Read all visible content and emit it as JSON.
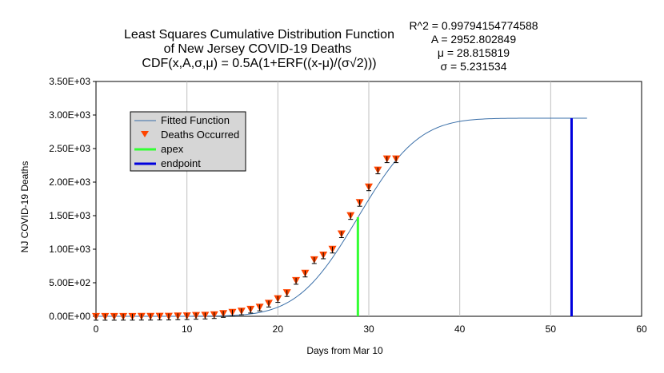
{
  "chart_data": {
    "type": "scatter",
    "title_lines": [
      "Least Squares Cumulative Distribution Function",
      "of New Jersey COVID-19 Deaths",
      "CDF(x,A,σ,μ) = 0.5A(1+ERF((x-μ)/(σ√2)))"
    ],
    "stats_lines": [
      "R^2 = 0.99794154774588",
      "A = 2952.802849",
      "μ = 28.815819",
      "σ = 5.231534"
    ],
    "params": {
      "A": 2952.802849,
      "mu": 28.815819,
      "sigma": 5.231534,
      "fit_x_range": [
        0,
        54
      ]
    },
    "xlabel": "Days from Mar 10",
    "ylabel": "NJ COVID-19 Deaths",
    "xlim": [
      0,
      60
    ],
    "ylim": [
      0,
      3500
    ],
    "x_ticks": [
      0,
      10,
      20,
      30,
      40,
      50,
      60
    ],
    "x_tick_labels": [
      "0",
      "10",
      "20",
      "30",
      "40",
      "50",
      "60"
    ],
    "y_ticks": [
      0,
      500,
      1000,
      1500,
      2000,
      2500,
      3000,
      3500
    ],
    "y_tick_labels": [
      "0.00E+00",
      "5.00E+02",
      "1.00E+03",
      "1.50E+03",
      "2.00E+03",
      "2.50E+03",
      "3.00E+03",
      "3.50E+03"
    ],
    "grid": "vertical",
    "legend": {
      "placement": "upper-left",
      "items": [
        "Fitted Function",
        "Deaths Occurred",
        "apex",
        "endpoint"
      ]
    },
    "observed": {
      "x": [
        0,
        1,
        2,
        3,
        4,
        5,
        6,
        7,
        8,
        9,
        10,
        11,
        12,
        13,
        14,
        15,
        16,
        17,
        18,
        19,
        20,
        21,
        22,
        23,
        24,
        25,
        26,
        27,
        28,
        29,
        30,
        31,
        32,
        33
      ],
      "y": [
        1,
        1,
        1,
        2,
        2,
        3,
        3,
        5,
        5,
        9,
        11,
        16,
        20,
        27,
        44,
        62,
        81,
        108,
        140,
        198,
        267,
        355,
        537,
        646,
        846,
        917,
        1003,
        1232,
        1504,
        1700,
        1932,
        2183,
        2350,
        2350
      ]
    },
    "apex": {
      "x": 28.8,
      "y": 1476
    },
    "endpoint": {
      "x": 52.3,
      "y": 2952
    },
    "colors": {
      "fit": "#3a6fa8",
      "observed": "#ff4500",
      "apex": "#33ff33",
      "endpoint": "#0000dd",
      "grid": "#bfbfbf"
    }
  }
}
